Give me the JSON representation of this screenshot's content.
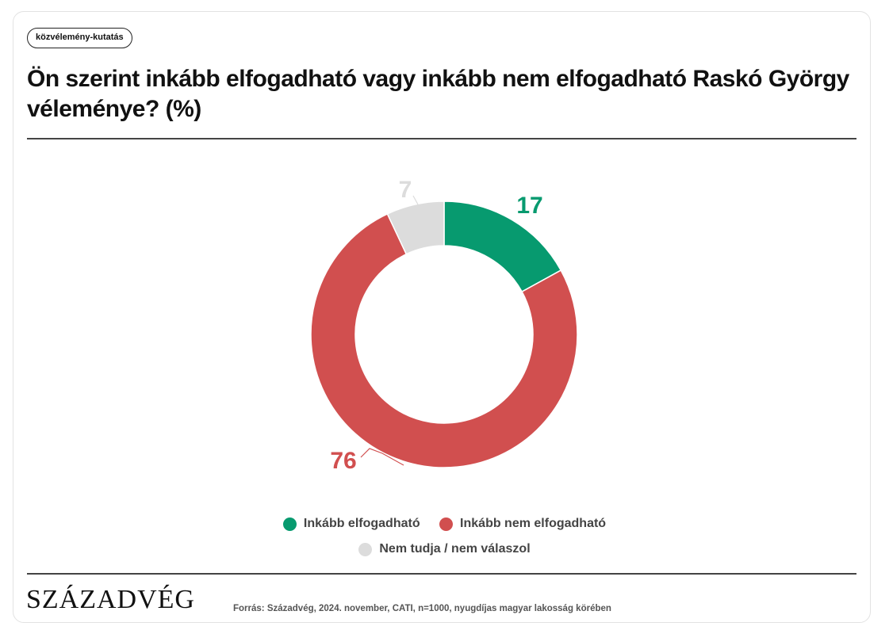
{
  "tag": "közvélemény-kutatás",
  "title": "Ön szerint inkább elfogadható vagy inkább nem elfogadható Raskó György véleménye? (%)",
  "brand": "SZÁZADVÉG",
  "source": "Forrás: Századvég, 2024. november, CATI, n=1000, nyugdíjas magyar lakosság körében",
  "chart_data": {
    "type": "pie",
    "variant": "donut",
    "start": "12 o'clock",
    "direction": "clockwise",
    "unit": "%",
    "legend_position": "bottom",
    "slices": [
      {
        "label": "Inkább elfogadható",
        "value": 17,
        "color": "#079a6f"
      },
      {
        "label": "Inkább nem elfogadható",
        "value": 76,
        "color": "#d14f4f"
      },
      {
        "label": "Nem tudja / nem válaszol",
        "value": 7,
        "color": "#dcdcdc"
      }
    ]
  }
}
